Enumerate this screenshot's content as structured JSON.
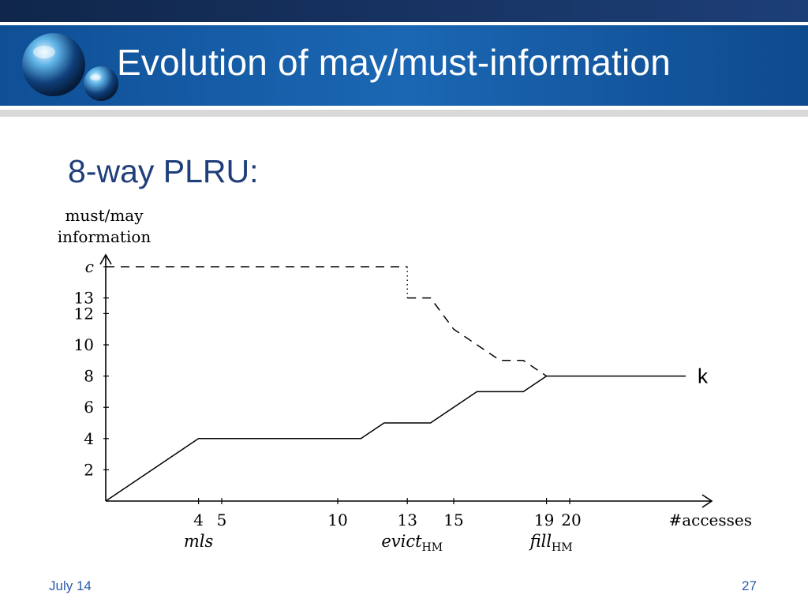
{
  "slide": {
    "title": "Evolution of may/must-information",
    "subtitle": "8-way PLRU:",
    "footer_date": "July 14",
    "page_number": "27",
    "colors": {
      "header_blue": "#1a5ea8",
      "title_text": "#ffffff",
      "subtitle_text": "#1f3f7a",
      "footer_text": "#2a5aa8"
    },
    "logo_icon": "crystal-spheres-icon"
  },
  "chart_data": {
    "type": "line",
    "ylabel_lines": [
      "must/may",
      "information"
    ],
    "xlabel": "#accesses",
    "y_ticks": [
      {
        "value": 2,
        "label": "2"
      },
      {
        "value": 4,
        "label": "4"
      },
      {
        "value": 6,
        "label": "6"
      },
      {
        "value": 8,
        "label": "8"
      },
      {
        "value": 10,
        "label": "10"
      },
      {
        "value": 12,
        "label": "12"
      },
      {
        "value": 13,
        "label": "13"
      },
      {
        "value": 15,
        "label": "c"
      }
    ],
    "x_ticks": [
      {
        "value": 4,
        "label": "4"
      },
      {
        "value": 5,
        "label": "5"
      },
      {
        "value": 10,
        "label": "10"
      },
      {
        "value": 13,
        "label": "13"
      },
      {
        "value": 15,
        "label": "15"
      },
      {
        "value": 19,
        "label": "19"
      },
      {
        "value": 20,
        "label": "20"
      }
    ],
    "annotations": [
      {
        "text": "mls",
        "x": 4,
        "sub": ""
      },
      {
        "text": "evict",
        "x": 13,
        "sub": "HM"
      },
      {
        "text": "fill",
        "x": 19,
        "sub": "HM"
      }
    ],
    "series": [
      {
        "style": "solid",
        "points": [
          [
            0,
            0
          ],
          [
            4,
            4
          ],
          [
            11,
            4
          ],
          [
            12,
            5
          ],
          [
            14,
            5
          ],
          [
            16,
            7
          ],
          [
            18,
            7
          ],
          [
            19,
            8
          ],
          [
            25,
            8
          ]
        ]
      },
      {
        "style": "dashed",
        "points": [
          [
            0,
            15
          ],
          [
            13,
            15
          ]
        ]
      },
      {
        "style": "dotted",
        "points": [
          [
            13,
            15
          ],
          [
            13,
            13
          ]
        ]
      },
      {
        "style": "dashed",
        "points": [
          [
            13,
            13
          ],
          [
            14,
            13
          ],
          [
            15,
            11
          ],
          [
            17,
            9
          ],
          [
            18,
            9
          ],
          [
            19,
            8
          ]
        ]
      }
    ],
    "end_label": "k",
    "xlim": [
      0,
      26
    ],
    "ylim": [
      0,
      15
    ]
  }
}
